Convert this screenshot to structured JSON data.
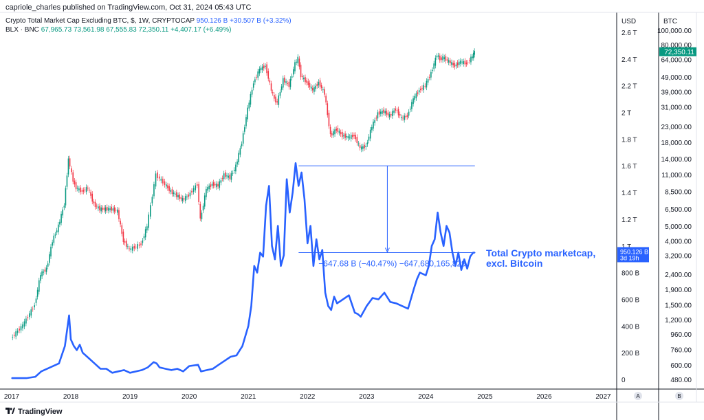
{
  "header": {
    "published": "capriole_charles published on TradingView.com, Oct 31, 2024 05:43 UTC",
    "series1": {
      "name": "Crypto Total Market Cap Excluding BTC, $, 1W, CRYPTOCAP",
      "value": "950.126 B",
      "change": "+30.507 B (+3.32%)"
    },
    "series2": {
      "name": "BLX · BNC",
      "o": "67,965.73",
      "h": "73,561.98",
      "l": "67,555.83",
      "c": "72,350.11",
      "change": "+4,407.17 (+6.49%)"
    }
  },
  "axes": {
    "usd_label": "USD",
    "btc_label": "BTC",
    "usd_ticks": [
      "2.6 T",
      "2.4 T",
      "2.2 T",
      "2 T",
      "1.8 T",
      "1.6 T",
      "1.4 T",
      "1.2 T",
      "1 T",
      "800 B",
      "600 B",
      "400 B",
      "200 B",
      "0"
    ],
    "btc_ticks": [
      "100,000.00",
      "80,000.00",
      "64,000.00",
      "49,000.00",
      "39,000.00",
      "31,000.00",
      "23,000.00",
      "18,000.00",
      "14,000.00",
      "11,000.00",
      "8,500.00",
      "6,500.00",
      "5,000.00",
      "4,000.00",
      "3,200.00",
      "2,400.00",
      "1,900.00",
      "1,500.00",
      "1,200.00",
      "960.00",
      "760.00",
      "600.00",
      "480.00"
    ],
    "x_ticks": [
      "2017",
      "2018",
      "2019",
      "2020",
      "2021",
      "2022",
      "2023",
      "2024",
      "2025",
      "2026",
      "2027"
    ],
    "usd_corner": "A",
    "btc_corner": "B"
  },
  "badges": {
    "usd_value": "950.126 B",
    "usd_countdown": "3d 19h",
    "btc_value": "72,350.11",
    "usd_color": "#2962ff",
    "btc_color": "#089981"
  },
  "annotation": {
    "label": "Total Crypto marketcap,\nexcl. Bitcoin",
    "measure": "−647.68 B (−40.47%) −647,680,165,829"
  },
  "footer": {
    "brand": "TradingView"
  },
  "chart_data": {
    "type": "line",
    "title": "Crypto Total Market Cap Excluding BTC, $, 1W, CRYPTOCAP",
    "x_range": [
      2017.0,
      2027.2
    ],
    "y_unit": "USD",
    "ylim": [
      0,
      2.7
    ],
    "grid": false,
    "series": [
      {
        "name": "Crypto Total Market Cap Excluding BTC",
        "axis": "left",
        "style": "line",
        "color": "#2962ff",
        "x": [
          2017.0,
          2017.25,
          2017.4,
          2017.5,
          2017.7,
          2017.8,
          2017.9,
          2017.97,
          2018.0,
          2018.05,
          2018.1,
          2018.15,
          2018.2,
          2018.25,
          2018.3,
          2018.4,
          2018.5,
          2018.6,
          2018.7,
          2018.8,
          2018.9,
          2019.0,
          2019.2,
          2019.3,
          2019.4,
          2019.45,
          2019.5,
          2019.6,
          2019.7,
          2019.8,
          2019.9,
          2020.0,
          2020.15,
          2020.2,
          2020.3,
          2020.4,
          2020.5,
          2020.6,
          2020.7,
          2020.8,
          2020.9,
          2021.0,
          2021.05,
          2021.1,
          2021.15,
          2021.2,
          2021.25,
          2021.3,
          2021.35,
          2021.4,
          2021.45,
          2021.5,
          2021.55,
          2021.6,
          2021.65,
          2021.7,
          2021.75,
          2021.8,
          2021.85,
          2021.9,
          2021.95,
          2022.0,
          2022.05,
          2022.1,
          2022.15,
          2022.2,
          2022.25,
          2022.3,
          2022.35,
          2022.4,
          2022.45,
          2022.5,
          2022.6,
          2022.7,
          2022.8,
          2022.85,
          2022.9,
          2023.0,
          2023.1,
          2023.2,
          2023.3,
          2023.4,
          2023.5,
          2023.6,
          2023.7,
          2023.8,
          2023.85,
          2023.9,
          2024.0,
          2024.05,
          2024.1,
          2024.15,
          2024.2,
          2024.25,
          2024.3,
          2024.35,
          2024.4,
          2024.45,
          2024.5,
          2024.55,
          2024.6,
          2024.65,
          2024.7,
          2024.75,
          2024.8,
          2024.83
        ],
        "y": [
          0.01,
          0.01,
          0.02,
          0.06,
          0.1,
          0.12,
          0.25,
          0.48,
          0.3,
          0.25,
          0.22,
          0.26,
          0.2,
          0.18,
          0.16,
          0.12,
          0.08,
          0.08,
          0.05,
          0.06,
          0.07,
          0.05,
          0.07,
          0.09,
          0.13,
          0.12,
          0.09,
          0.08,
          0.07,
          0.08,
          0.06,
          0.1,
          0.11,
          0.06,
          0.07,
          0.08,
          0.11,
          0.14,
          0.17,
          0.18,
          0.25,
          0.4,
          0.55,
          0.85,
          0.8,
          0.95,
          0.92,
          1.3,
          1.45,
          1.0,
          0.9,
          1.15,
          0.85,
          0.93,
          1.5,
          1.25,
          1.4,
          1.62,
          1.45,
          1.55,
          1.35,
          1.02,
          1.15,
          0.85,
          1.05,
          0.9,
          0.97,
          0.65,
          0.55,
          0.52,
          0.62,
          0.57,
          0.6,
          0.63,
          0.5,
          0.49,
          0.47,
          0.55,
          0.61,
          0.6,
          0.65,
          0.58,
          0.57,
          0.55,
          0.53,
          0.68,
          0.75,
          0.8,
          0.78,
          0.85,
          1.0,
          1.05,
          1.25,
          1.1,
          1.0,
          1.15,
          1.1,
          0.95,
          0.85,
          0.95,
          0.82,
          0.9,
          0.83,
          0.92,
          0.95,
          0.95
        ]
      },
      {
        "name": "BLX · BNC",
        "axis": "right",
        "style": "candles",
        "up_color": "#089981",
        "down_color": "#f23645",
        "x": [
          2017.0,
          2017.2,
          2017.4,
          2017.5,
          2017.6,
          2017.7,
          2017.8,
          2017.9,
          2017.97,
          2018.05,
          2018.1,
          2018.2,
          2018.3,
          2018.4,
          2018.5,
          2018.6,
          2018.7,
          2018.8,
          2018.9,
          2019.0,
          2019.2,
          2019.3,
          2019.45,
          2019.6,
          2019.7,
          2019.8,
          2019.9,
          2020.0,
          2020.15,
          2020.2,
          2020.3,
          2020.4,
          2020.5,
          2020.6,
          2020.7,
          2020.8,
          2020.9,
          2021.0,
          2021.1,
          2021.2,
          2021.3,
          2021.4,
          2021.45,
          2021.5,
          2021.6,
          2021.7,
          2021.8,
          2021.85,
          2021.9,
          2022.0,
          2022.1,
          2022.2,
          2022.3,
          2022.4,
          2022.45,
          2022.5,
          2022.6,
          2022.7,
          2022.8,
          2022.9,
          2023.0,
          2023.1,
          2023.2,
          2023.3,
          2023.4,
          2023.5,
          2023.6,
          2023.7,
          2023.8,
          2023.9,
          2024.0,
          2024.1,
          2024.2,
          2024.25,
          2024.3,
          2024.4,
          2024.5,
          2024.6,
          2024.7,
          2024.8,
          2024.83
        ],
        "close": [
          900,
          1100,
          1500,
          2400,
          2600,
          4000,
          5000,
          7000,
          14000,
          10000,
          9000,
          8500,
          9000,
          7000,
          6500,
          6500,
          6500,
          6300,
          4000,
          3500,
          3800,
          5000,
          11000,
          9500,
          8500,
          8000,
          7500,
          8000,
          9500,
          5500,
          8800,
          9500,
          9300,
          11000,
          10500,
          12500,
          18000,
          30000,
          45000,
          55000,
          58000,
          40000,
          35000,
          33000,
          47000,
          43000,
          60000,
          65000,
          50000,
          45000,
          40000,
          45000,
          38000,
          20000,
          21000,
          22000,
          20000,
          19500,
          20000,
          16500,
          17000,
          23000,
          28000,
          29000,
          27000,
          30000,
          26000,
          27000,
          35000,
          40000,
          43000,
          52000,
          69000,
          64000,
          66000,
          62000,
          58000,
          62000,
          60000,
          67000,
          72350
        ]
      }
    ],
    "annotations": [
      {
        "type": "measure",
        "from": {
          "x": 2021.85,
          "y": 1.6
        },
        "to": {
          "x": 2024.83,
          "y": 0.95
        },
        "label": "−647.68 B (−40.47%) −647,680,165,829"
      },
      {
        "type": "label",
        "x": 2024.95,
        "y": 0.95,
        "text": "Total Crypto marketcap, excl. Bitcoin"
      }
    ]
  }
}
